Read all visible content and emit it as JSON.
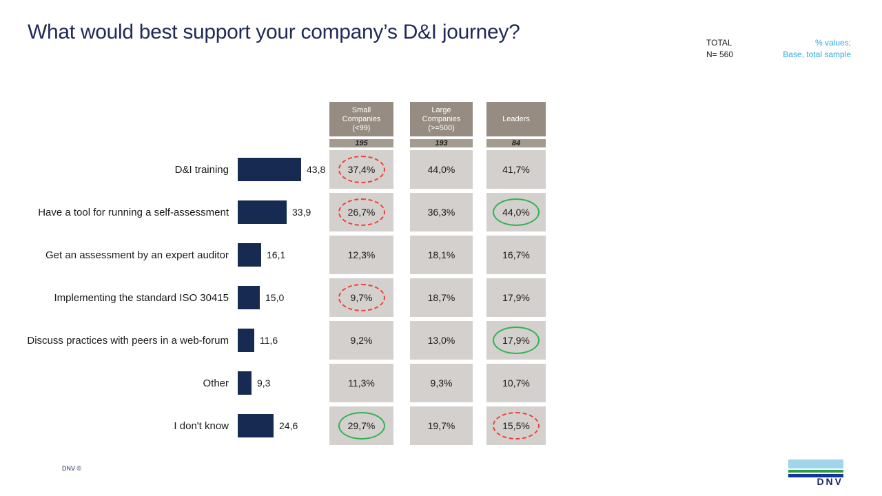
{
  "title": "What would best support your company’s D&I journey?",
  "header_right": {
    "total_label": "TOTAL",
    "n_label": "N= 560",
    "note": "% values;\nBase, total sample"
  },
  "columns": [
    {
      "title": "Small\nCompanies\n(<99)",
      "n": "195"
    },
    {
      "title": "Large\nCompanies\n(>=500)",
      "n": "193"
    },
    {
      "title": "Leaders",
      "n": "84"
    }
  ],
  "table": {
    "rows": [
      {
        "label": "D&I training",
        "total_display": "43,8",
        "value": 43.8,
        "cells": [
          {
            "value": "37,4%",
            "highlight": "red-dashed"
          },
          {
            "value": "44,0%",
            "highlight": "none"
          },
          {
            "value": "41,7%",
            "highlight": "none"
          }
        ]
      },
      {
        "label": "Have a tool for running a self-assessment",
        "total_display": "33,9",
        "value": 33.9,
        "cells": [
          {
            "value": "26,7%",
            "highlight": "red-dashed"
          },
          {
            "value": "36,3%",
            "highlight": "none"
          },
          {
            "value": "44,0%",
            "highlight": "green-solid"
          }
        ]
      },
      {
        "label": "Get an assessment by an expert auditor",
        "total_display": "16,1",
        "value": 16.1,
        "cells": [
          {
            "value": "12,3%",
            "highlight": "none"
          },
          {
            "value": "18,1%",
            "highlight": "none"
          },
          {
            "value": "16,7%",
            "highlight": "none"
          }
        ]
      },
      {
        "label": "Implementing the standard ISO 30415",
        "total_display": "15,0",
        "value": 15.0,
        "cells": [
          {
            "value": "9,7%",
            "highlight": "red-dashed"
          },
          {
            "value": "18,7%",
            "highlight": "none"
          },
          {
            "value": "17,9%",
            "highlight": "none"
          }
        ]
      },
      {
        "label": "Discuss practices with peers in a web-forum",
        "total_display": "11,6",
        "value": 11.6,
        "cells": [
          {
            "value": "9,2%",
            "highlight": "none"
          },
          {
            "value": "13,0%",
            "highlight": "none"
          },
          {
            "value": "17,9%",
            "highlight": "green-solid"
          }
        ]
      },
      {
        "label": "Other",
        "total_display": "9,3",
        "value": 9.3,
        "cells": [
          {
            "value": "11,3%",
            "highlight": "none"
          },
          {
            "value": "9,3%",
            "highlight": "none"
          },
          {
            "value": "10,7%",
            "highlight": "none"
          }
        ]
      },
      {
        "label": "I don't know",
        "total_display": "24,6",
        "value": 24.6,
        "cells": [
          {
            "value": "29,7%",
            "highlight": "green-solid"
          },
          {
            "value": "19,7%",
            "highlight": "none"
          },
          {
            "value": "15,5%",
            "highlight": "red-dashed"
          }
        ]
      }
    ]
  },
  "chart_data": {
    "type": "bar",
    "orientation": "horizontal",
    "title": "What would best support your company’s D&I journey?",
    "unit": "%",
    "categories": [
      "D&I training",
      "Have a tool for running a self-assessment",
      "Get an assessment by an expert auditor",
      "Implementing the standard ISO 30415",
      "Discuss practices with peers in a web-forum",
      "Other",
      "I don't know"
    ],
    "series": [
      {
        "name": "Total",
        "n": 560,
        "values": [
          43.8,
          33.9,
          16.1,
          15.0,
          11.6,
          9.3,
          24.6
        ]
      },
      {
        "name": "Small Companies (<99)",
        "n": 195,
        "values": [
          37.4,
          26.7,
          12.3,
          9.7,
          9.2,
          11.3,
          29.7
        ]
      },
      {
        "name": "Large Companies (>=500)",
        "n": 193,
        "values": [
          44.0,
          36.3,
          18.1,
          18.7,
          13.0,
          9.3,
          19.7
        ]
      },
      {
        "name": "Leaders",
        "n": 84,
        "values": [
          41.7,
          44.0,
          16.7,
          17.9,
          17.9,
          10.7,
          15.5
        ]
      }
    ],
    "annotations": {
      "red_dashed_ellipse_cells": [
        "Small Companies: D&I training 37,4%",
        "Small Companies: Have a tool for running a self-assessment 26,7%",
        "Small Companies: Implementing the standard ISO 30415 9,7%",
        "Leaders: I don't know 15,5%"
      ],
      "green_solid_ellipse_cells": [
        "Leaders: Have a tool for running a self-assessment 44,0%",
        "Leaders: Discuss practices with peers in a web-forum 17,9%",
        "Small Companies: I don't know 29,7%"
      ],
      "legend_position": "none",
      "grid": false,
      "xlim": [
        0,
        50
      ]
    }
  },
  "footer": {
    "copyright": "DNV ©",
    "logo_text": "DNV"
  },
  "colors": {
    "bar": "#172a52",
    "title": "#1f2a56",
    "header_bg": "#968c82",
    "band_bg": "#a39a90",
    "cell_bg": "#d3d0cd",
    "accent_cyan": "#29a9e0",
    "red_ellipse": "#ee4136",
    "green_ellipse": "#2eb353",
    "logo_light_blue": "#9fd6e9",
    "logo_green": "#2f9e41",
    "logo_dark_blue": "#16339a"
  }
}
